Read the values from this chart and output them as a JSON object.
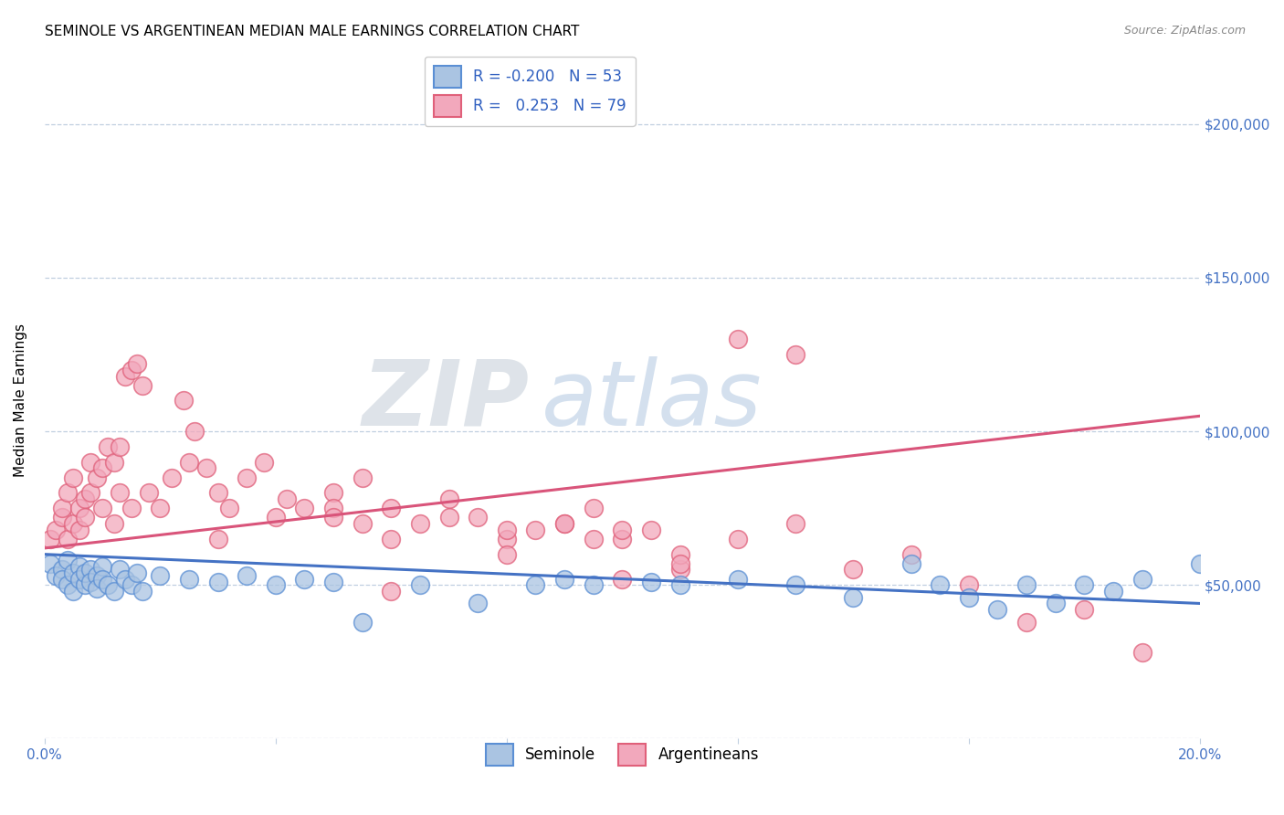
{
  "title": "SEMINOLE VS ARGENTINEAN MEDIAN MALE EARNINGS CORRELATION CHART",
  "source": "Source: ZipAtlas.com",
  "ylabel": "Median Male Earnings",
  "watermark_zip": "ZIP",
  "watermark_atlas": "atlas",
  "x_min": 0.0,
  "x_max": 0.2,
  "y_min": 0,
  "y_max": 220000,
  "x_ticks": [
    0.0,
    0.04,
    0.08,
    0.12,
    0.16,
    0.2
  ],
  "x_tick_labels": [
    "0.0%",
    "",
    "",
    "",
    "",
    "20.0%"
  ],
  "y_ticks": [
    0,
    50000,
    100000,
    150000,
    200000
  ],
  "y_tick_labels": [
    "",
    "$50,000",
    "$100,000",
    "$150,000",
    "$200,000"
  ],
  "seminole_color": "#aac4e2",
  "argentinean_color": "#f2a8bc",
  "seminole_edge_color": "#5b8fd4",
  "argentinean_edge_color": "#e0607a",
  "seminole_line_color": "#4472c4",
  "argentinean_line_color": "#d9547a",
  "legend_text_color": "#3060c0",
  "R_seminole": -0.2,
  "N_seminole": 53,
  "R_argentinean": 0.253,
  "N_argentinean": 79,
  "background_color": "#ffffff",
  "grid_color": "#c0cfe0",
  "title_fontsize": 11,
  "axis_tick_color": "#4472c4",
  "seminole_line_y0": 60000,
  "seminole_line_y1": 44000,
  "argentinean_line_y0": 62000,
  "argentinean_line_y1": 105000,
  "seminole_x": [
    0.001,
    0.002,
    0.003,
    0.003,
    0.004,
    0.004,
    0.005,
    0.005,
    0.006,
    0.006,
    0.007,
    0.007,
    0.008,
    0.008,
    0.009,
    0.009,
    0.01,
    0.01,
    0.011,
    0.012,
    0.013,
    0.014,
    0.015,
    0.016,
    0.017,
    0.02,
    0.025,
    0.03,
    0.035,
    0.04,
    0.045,
    0.05,
    0.055,
    0.065,
    0.075,
    0.085,
    0.09,
    0.095,
    0.105,
    0.11,
    0.12,
    0.13,
    0.14,
    0.15,
    0.155,
    0.16,
    0.165,
    0.17,
    0.175,
    0.18,
    0.185,
    0.19,
    0.2
  ],
  "seminole_y": [
    57000,
    53000,
    55000,
    52000,
    58000,
    50000,
    54000,
    48000,
    56000,
    52000,
    50000,
    54000,
    55000,
    51000,
    53000,
    49000,
    56000,
    52000,
    50000,
    48000,
    55000,
    52000,
    50000,
    54000,
    48000,
    53000,
    52000,
    51000,
    53000,
    50000,
    52000,
    51000,
    38000,
    50000,
    44000,
    50000,
    52000,
    50000,
    51000,
    50000,
    52000,
    50000,
    46000,
    57000,
    50000,
    46000,
    42000,
    50000,
    44000,
    50000,
    48000,
    52000,
    57000
  ],
  "argentinean_x": [
    0.001,
    0.002,
    0.003,
    0.003,
    0.004,
    0.004,
    0.005,
    0.005,
    0.006,
    0.006,
    0.007,
    0.007,
    0.008,
    0.008,
    0.009,
    0.01,
    0.01,
    0.011,
    0.012,
    0.012,
    0.013,
    0.013,
    0.014,
    0.015,
    0.015,
    0.016,
    0.017,
    0.018,
    0.02,
    0.022,
    0.024,
    0.025,
    0.026,
    0.028,
    0.03,
    0.032,
    0.035,
    0.038,
    0.04,
    0.042,
    0.045,
    0.05,
    0.055,
    0.06,
    0.065,
    0.07,
    0.075,
    0.08,
    0.085,
    0.09,
    0.095,
    0.1,
    0.105,
    0.11,
    0.05,
    0.055,
    0.06,
    0.07,
    0.08,
    0.09,
    0.095,
    0.1,
    0.11,
    0.12,
    0.13,
    0.14,
    0.15,
    0.16,
    0.17,
    0.18,
    0.19,
    0.13,
    0.12,
    0.08,
    0.1,
    0.11,
    0.05,
    0.03,
    0.06
  ],
  "argentinean_y": [
    65000,
    68000,
    72000,
    75000,
    65000,
    80000,
    70000,
    85000,
    75000,
    68000,
    78000,
    72000,
    80000,
    90000,
    85000,
    88000,
    75000,
    95000,
    90000,
    70000,
    95000,
    80000,
    118000,
    120000,
    75000,
    122000,
    115000,
    80000,
    75000,
    85000,
    110000,
    90000,
    100000,
    88000,
    80000,
    75000,
    85000,
    90000,
    72000,
    78000,
    75000,
    80000,
    85000,
    75000,
    70000,
    78000,
    72000,
    65000,
    68000,
    70000,
    75000,
    65000,
    68000,
    55000,
    75000,
    70000,
    65000,
    72000,
    68000,
    70000,
    65000,
    68000,
    60000,
    65000,
    70000,
    55000,
    60000,
    50000,
    38000,
    42000,
    28000,
    125000,
    130000,
    60000,
    52000,
    57000,
    72000,
    65000,
    48000
  ]
}
